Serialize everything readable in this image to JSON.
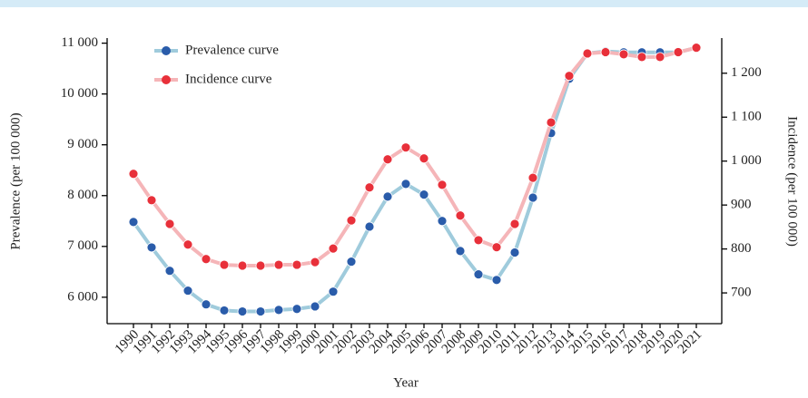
{
  "chart_data": {
    "type": "line",
    "categories": [
      "1990",
      "1991",
      "1992",
      "1993",
      "1994",
      "1995",
      "1996",
      "1997",
      "1998",
      "1999",
      "2000",
      "2001",
      "2002",
      "2003",
      "2004",
      "2005",
      "2006",
      "2007",
      "2008",
      "2009",
      "2010",
      "2011",
      "2012",
      "2013",
      "2014",
      "2015",
      "2016",
      "2017",
      "2018",
      "2019",
      "2020",
      "2021"
    ],
    "x_label": "Year",
    "y_label": "Prevalence (per 100 000)",
    "y2_label": "Incidence (per 100 000)",
    "ylim": [
      5480,
      11100
    ],
    "yticks": [
      {
        "value": 6000,
        "label": "6 000"
      },
      {
        "value": 7000,
        "label": "7 000"
      },
      {
        "value": 8000,
        "label": "8 000"
      },
      {
        "value": 9000,
        "label": "9 000"
      },
      {
        "value": 10000,
        "label": "10 000"
      },
      {
        "value": 11000,
        "label": "11 000"
      }
    ],
    "y2lim": [
      630,
      1280
    ],
    "y2ticks": [
      700,
      800,
      900,
      {
        "value": 1000,
        "label": "1 000"
      },
      {
        "value": 1100,
        "label": "1 100"
      },
      {
        "value": 1200,
        "label": "1 200"
      }
    ],
    "series": [
      {
        "name": "Prevalence curve",
        "color": "#2a5caa",
        "line_color": "#9fcbdc",
        "values": [
          7480,
          6980,
          6520,
          6130,
          5860,
          5740,
          5720,
          5720,
          5750,
          5770,
          5820,
          6110,
          6700,
          7390,
          7980,
          8230,
          8020,
          7500,
          6910,
          6450,
          6340,
          6880,
          7960,
          9230,
          10300,
          10800,
          10840,
          10820,
          10820,
          10820,
          10820,
          10910
        ]
      },
      {
        "name": "Incidence curve",
        "color": "#e8303a",
        "line_color": "#f5b5b8",
        "axis": "y2",
        "values": [
          971,
          911,
          857,
          810,
          777,
          764,
          762,
          762,
          764,
          764,
          770,
          801,
          865,
          940,
          1004,
          1031,
          1006,
          946,
          876,
          820,
          804,
          857,
          962,
          1088,
          1194,
          1245,
          1248,
          1243,
          1237,
          1237,
          1248,
          1258
        ]
      }
    ]
  }
}
